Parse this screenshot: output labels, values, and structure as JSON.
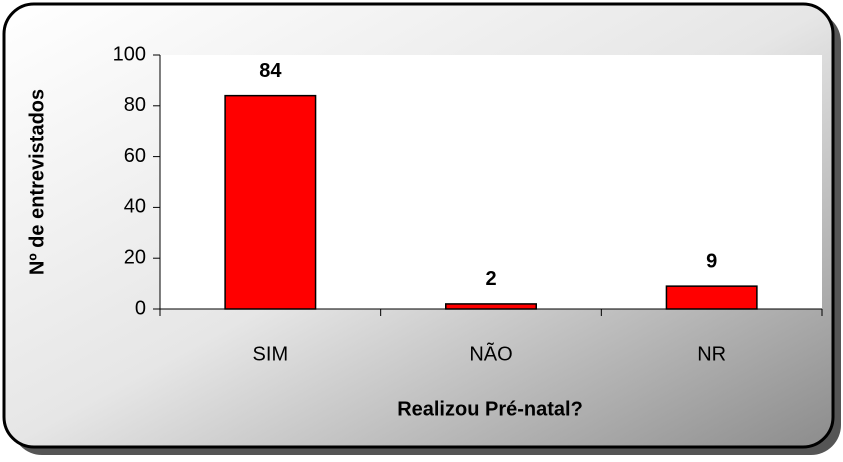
{
  "chart_data": {
    "type": "bar",
    "categories": [
      "SIM",
      "NÃO",
      "NR"
    ],
    "values": [
      84,
      2,
      9
    ],
    "color": "#ff0000",
    "xlabel": "Realizou Pré-natal?",
    "ylabel": "Nº de entrevistados",
    "ylim": [
      0,
      100
    ],
    "yticks": [
      0,
      20,
      40,
      60,
      80,
      100
    ],
    "grid": false
  }
}
